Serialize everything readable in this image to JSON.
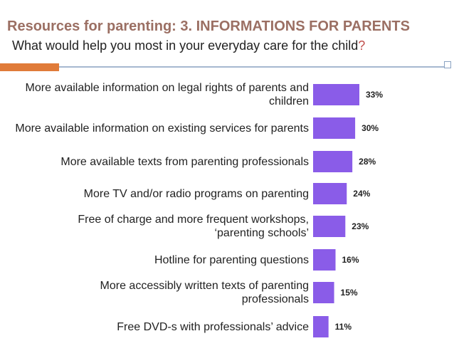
{
  "header": {
    "title": "Resources for parenting: 3. INFORMATIONS FOR PARENTS",
    "subtitle": "What would help you most in your everyday care for the child",
    "subtitle_mark": "?"
  },
  "colors": {
    "title": "#9b6f63",
    "bar": "#8a5ce8",
    "accent_orange": "#e07b39",
    "rule_blue": "#a6b8d0"
  },
  "chart_data": {
    "type": "bar",
    "orientation": "horizontal",
    "categories": [
      "More available information on legal rights of parents and children",
      "More available information on existing services for parents",
      "More available texts from parenting professionals",
      "More TV and/or radio programs on parenting",
      "Free of charge and more frequent workshops, ‘parenting schools’",
      "Hotline for parenting questions",
      "More accessibly written texts of parenting professionals",
      "Free DVD-s with professionals’ advice"
    ],
    "values": [
      33,
      30,
      28,
      24,
      23,
      16,
      15,
      11
    ],
    "value_labels": [
      "33%",
      "30%",
      "28%",
      "24%",
      "23%",
      "16%",
      "15%",
      "11%"
    ],
    "unit": "%"
  }
}
